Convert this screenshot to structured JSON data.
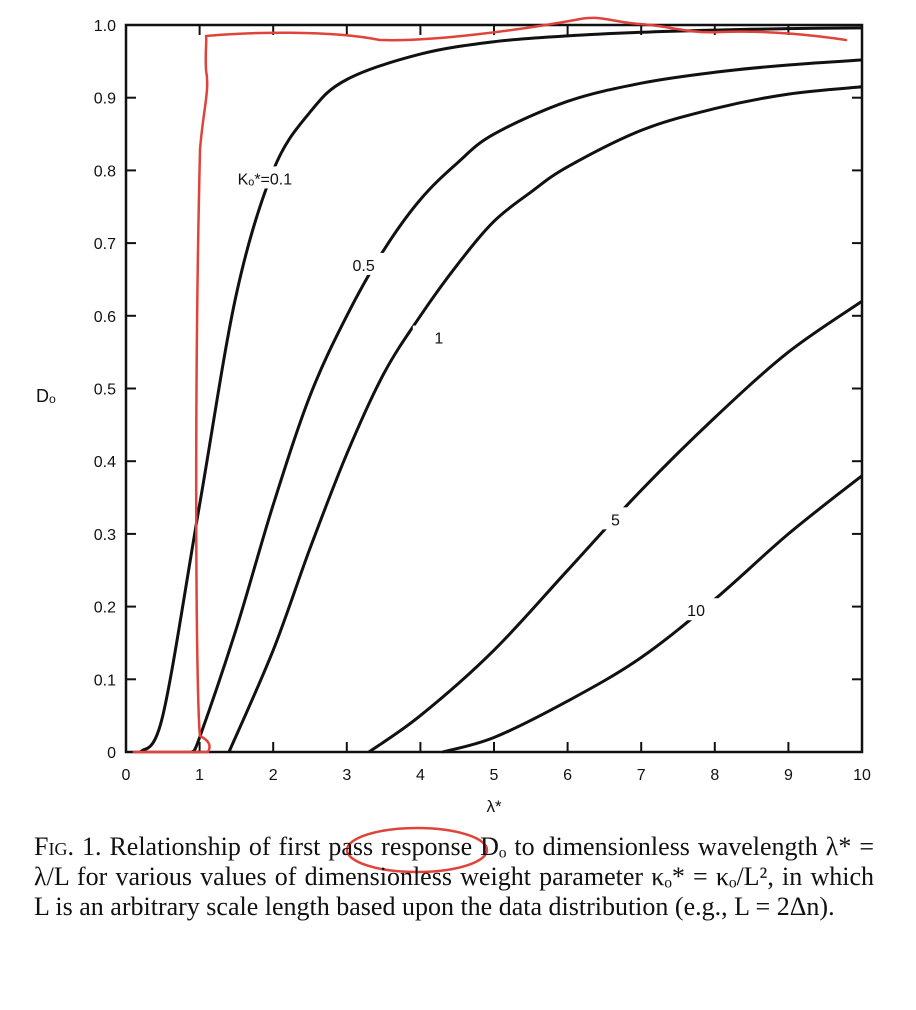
{
  "chart_data": {
    "type": "line",
    "title": "",
    "xlabel": "λ*",
    "ylabel": "Dₒ",
    "xlim": [
      0,
      10
    ],
    "ylim": [
      0,
      1.0
    ],
    "x_ticks": [
      "0",
      "1",
      "2",
      "3",
      "4",
      "5",
      "6",
      "7",
      "8",
      "9",
      "10"
    ],
    "y_ticks": [
      "0",
      "0.1",
      "0.2",
      "0.3",
      "0.4",
      "0.5",
      "0.6",
      "0.7",
      "0.8",
      "0.9",
      "1.0"
    ],
    "grid": false,
    "series": [
      {
        "name": "κₒ* = 0.1",
        "label": "Kₒ*=0.1",
        "x": [
          0.2,
          0.5,
          1.0,
          1.5,
          2.0,
          2.5,
          3.0,
          4.0,
          5.0,
          6.0,
          7.0,
          8.0,
          9.0,
          10.0
        ],
        "y": [
          0.0,
          0.05,
          0.34,
          0.63,
          0.8,
          0.88,
          0.925,
          0.96,
          0.977,
          0.985,
          0.99,
          0.993,
          0.995,
          0.996
        ]
      },
      {
        "name": "κₒ* = 0.5",
        "label": "0.5",
        "x": [
          0.9,
          1.0,
          1.5,
          2.0,
          2.5,
          3.0,
          3.5,
          4.0,
          4.5,
          5.0,
          6.0,
          7.0,
          8.0,
          9.0,
          10.0
        ],
        "y": [
          0.0,
          0.02,
          0.17,
          0.34,
          0.49,
          0.6,
          0.69,
          0.76,
          0.81,
          0.85,
          0.895,
          0.92,
          0.935,
          0.945,
          0.952
        ]
      },
      {
        "name": "κₒ* = 1",
        "label": "1",
        "x": [
          1.4,
          2.0,
          2.5,
          3.0,
          3.5,
          4.0,
          4.5,
          5.0,
          5.5,
          6.0,
          7.0,
          8.0,
          9.0,
          10.0
        ],
        "y": [
          0.0,
          0.14,
          0.28,
          0.41,
          0.52,
          0.6,
          0.67,
          0.73,
          0.77,
          0.805,
          0.855,
          0.885,
          0.905,
          0.915
        ]
      },
      {
        "name": "κₒ* = 5",
        "label": "5",
        "x": [
          3.3,
          4.0,
          5.0,
          6.0,
          7.0,
          8.0,
          9.0,
          10.0
        ],
        "y": [
          0.0,
          0.05,
          0.14,
          0.25,
          0.36,
          0.46,
          0.55,
          0.62
        ]
      },
      {
        "name": "κₒ* = 10",
        "label": "10",
        "x": [
          4.3,
          5.0,
          6.0,
          7.0,
          8.0,
          9.0,
          10.0
        ],
        "y": [
          0.0,
          0.02,
          0.07,
          0.13,
          0.21,
          0.3,
          0.38
        ]
      }
    ],
    "annotations": [
      "red hand-drawn outline tracing a step response from 0 to about 0.98 near λ* = 1",
      "red hand-drawn circle around the words \"first pass\" in the caption"
    ]
  },
  "caption": {
    "fig_label": "Fig. 1.",
    "text": "Relationship of first pass response Dₒ to dimensionless wavelength λ* = λ/L for various values of dimensionless weight parameter κₒ* = κₒ/L², in which L is an arbitrary scale length based upon the data distribution (e.g., L = 2Δn)."
  },
  "colors": {
    "ink": "#111111",
    "annotation": "#e0433a"
  }
}
